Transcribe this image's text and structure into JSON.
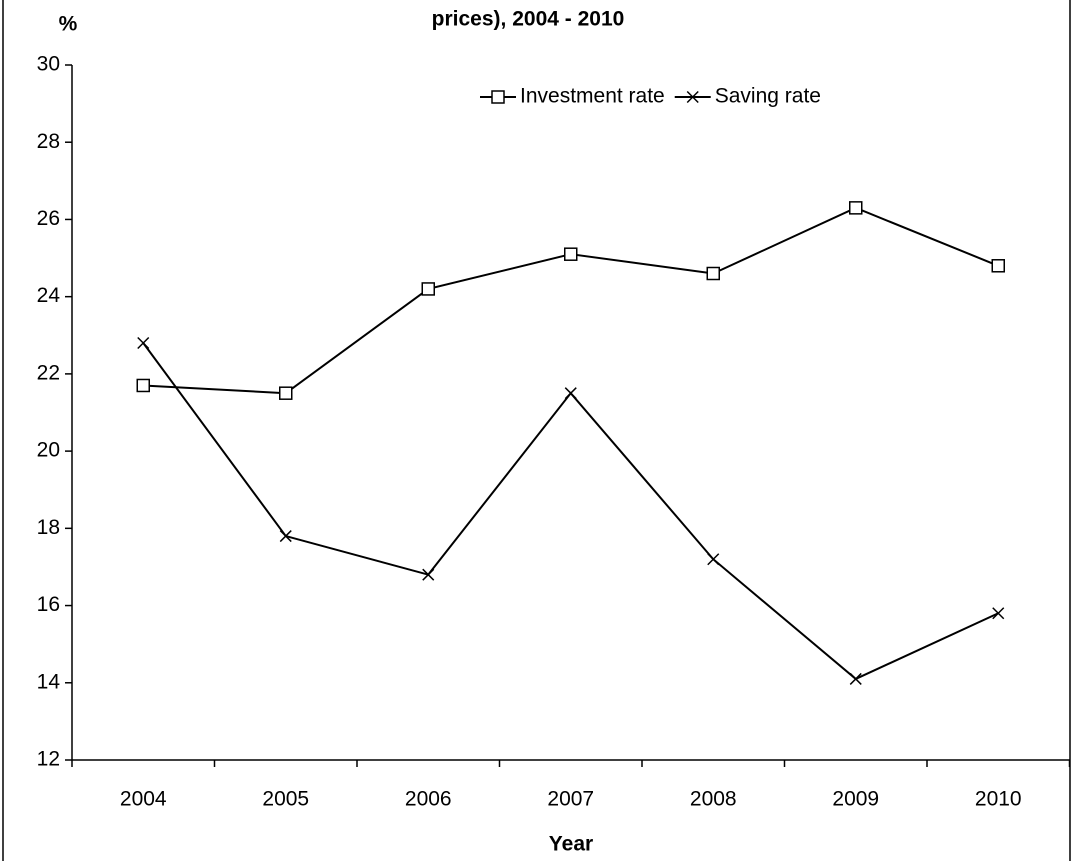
{
  "chart_data": {
    "type": "line",
    "title": "prices), 2004 - 2010",
    "y_label": "%",
    "x_label": "Year",
    "categories": [
      "2004",
      "2005",
      "2006",
      "2007",
      "2008",
      "2009",
      "2010"
    ],
    "series": [
      {
        "name": "Investment rate",
        "color": "#000000",
        "marker": "square",
        "values": [
          21.7,
          21.5,
          24.2,
          25.1,
          24.6,
          26.3,
          24.8
        ]
      },
      {
        "name": "Saving rate",
        "color": "#000000",
        "marker": "x",
        "values": [
          22.8,
          17.8,
          16.8,
          21.5,
          17.2,
          14.1,
          15.8
        ]
      }
    ],
    "ylim": [
      12,
      30
    ],
    "yticks": [
      12,
      14,
      16,
      18,
      20,
      22,
      24,
      26,
      28,
      30
    ],
    "grid": false,
    "legend": "top"
  }
}
